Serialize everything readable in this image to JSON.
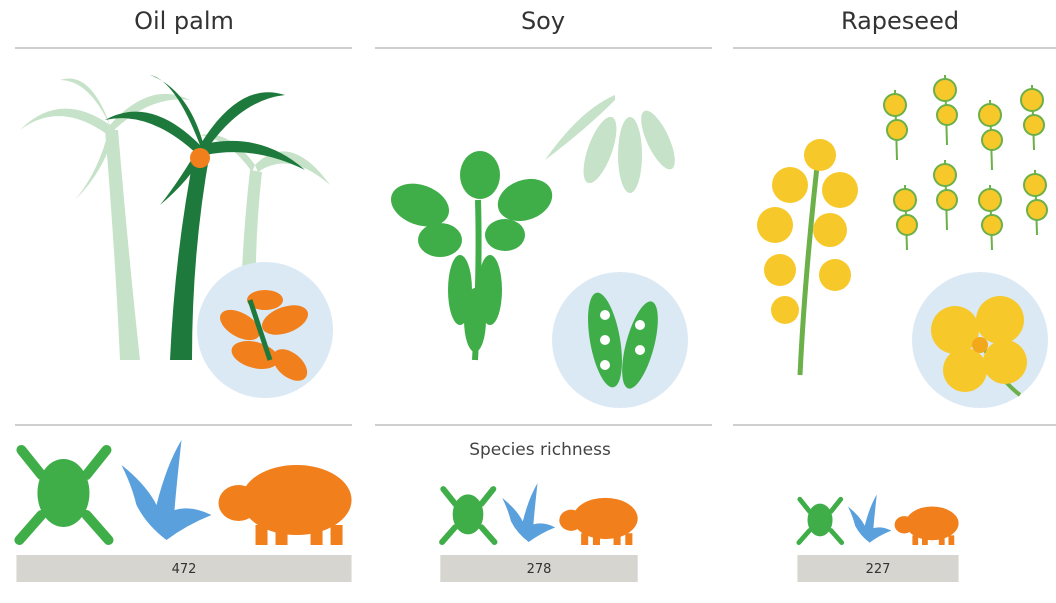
{
  "chart_data": {
    "type": "bar",
    "categories": [
      "Oil palm",
      "Soy",
      "Rapeseed"
    ],
    "values": [
      472,
      278,
      227
    ],
    "annotation": "Species richness",
    "color": "#d6d5cf"
  }
}
